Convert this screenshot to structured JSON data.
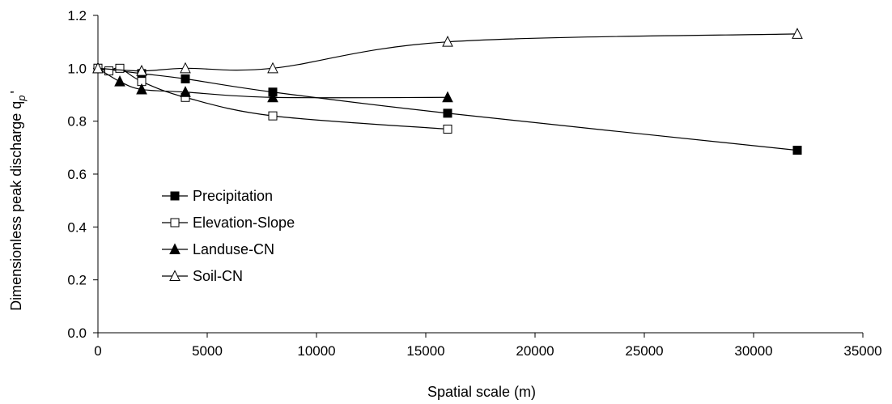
{
  "chart_data": {
    "type": "line",
    "title": "",
    "xlabel": "Spatial scale (m)",
    "ylabel": "Dimensionless peak discharge q",
    "ylabel_sub": "p",
    "ylabel_prime": "'",
    "xlim": [
      0,
      35000
    ],
    "ylim": [
      0,
      1.2
    ],
    "xticks": [
      0,
      5000,
      10000,
      15000,
      20000,
      25000,
      30000,
      35000
    ],
    "yticks": [
      0.0,
      0.2,
      0.4,
      0.6,
      0.8,
      1.0,
      1.2
    ],
    "ytick_labels": [
      "0.0",
      "0.2",
      "0.4",
      "0.6",
      "0.8",
      "1.0",
      "1.2"
    ],
    "grid": false,
    "legend_position": "lower-left",
    "series": [
      {
        "name": "Precipitation",
        "marker": "square-filled",
        "x": [
          0,
          2000,
          4000,
          8000,
          16000,
          32000
        ],
        "y": [
          1.0,
          0.98,
          0.96,
          0.91,
          0.83,
          0.69
        ]
      },
      {
        "name": "Elevation-Slope",
        "marker": "square-open",
        "x": [
          0,
          500,
          1000,
          2000,
          4000,
          8000,
          16000
        ],
        "y": [
          1.0,
          0.99,
          1.0,
          0.95,
          0.89,
          0.82,
          0.77
        ]
      },
      {
        "name": "Landuse-CN",
        "marker": "triangle-filled",
        "x": [
          0,
          1000,
          2000,
          4000,
          8000,
          16000
        ],
        "y": [
          1.0,
          0.95,
          0.92,
          0.91,
          0.89,
          0.89
        ]
      },
      {
        "name": "Soil-CN",
        "marker": "triangle-open",
        "x": [
          0,
          2000,
          4000,
          8000,
          16000,
          32000
        ],
        "y": [
          1.0,
          0.99,
          1.0,
          1.0,
          1.1,
          1.13
        ]
      }
    ]
  }
}
